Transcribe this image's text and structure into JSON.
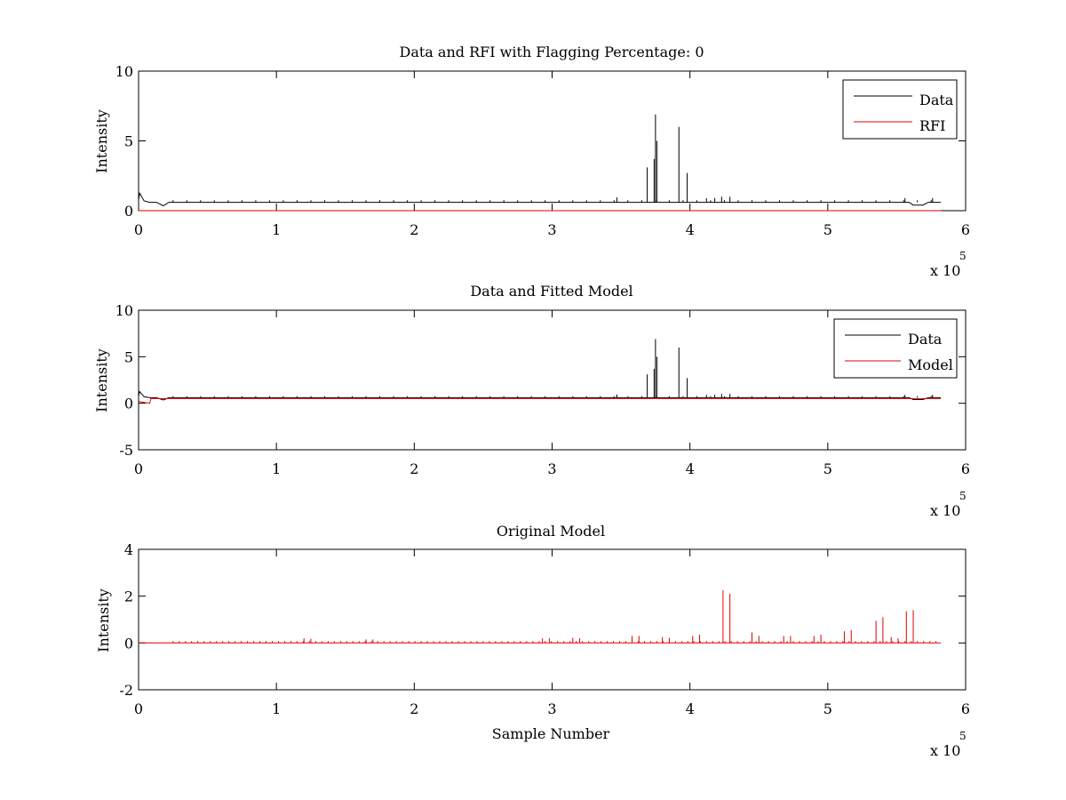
{
  "colors": {
    "data": "#000000",
    "model": "#e00000",
    "axes": "#000000",
    "background": "#ffffff"
  },
  "chart_data": [
    {
      "type": "line",
      "title": "Data and RFI with Flagging Percentage: 0",
      "xlabel": "",
      "ylabel": "Intensity",
      "xlim": [
        0,
        600000
      ],
      "ylim": [
        0,
        10
      ],
      "xticks": [
        "0",
        "1",
        "2",
        "3",
        "4",
        "5",
        "6"
      ],
      "yticks": [
        "0",
        "5",
        "10"
      ],
      "x_multiplier": {
        "base": "x 10",
        "exponent": "5"
      },
      "legend": {
        "position": "top-right",
        "entries": [
          "Data",
          "RFI"
        ]
      },
      "series": [
        {
          "name": "Data",
          "color": "#000000",
          "baseline": 0.6,
          "x_end": 582000,
          "start_transient": {
            "peak": 1.25,
            "x": 800
          },
          "dip": {
            "x": 18000,
            "value": 0.35
          },
          "dip2": {
            "x": 565000,
            "value": 0.4
          },
          "small_spike_spacing": 10000,
          "small_spike_height": 0.75,
          "spikes": [
            {
              "x": 369000,
              "y": 3.1
            },
            {
              "x": 374000,
              "y": 3.7
            },
            {
              "x": 375000,
              "y": 6.9
            },
            {
              "x": 376000,
              "y": 5.0
            },
            {
              "x": 392000,
              "y": 6.0
            },
            {
              "x": 398000,
              "y": 2.7
            },
            {
              "x": 347000,
              "y": 0.95
            },
            {
              "x": 412000,
              "y": 0.9
            },
            {
              "x": 418000,
              "y": 0.9
            },
            {
              "x": 423000,
              "y": 1.0
            },
            {
              "x": 429000,
              "y": 1.0
            },
            {
              "x": 556000,
              "y": 0.9
            },
            {
              "x": 576000,
              "y": 0.9
            }
          ]
        },
        {
          "name": "RFI",
          "color": "#e00000",
          "constant": 0
        }
      ]
    },
    {
      "type": "line",
      "title": "Data and Fitted Model",
      "xlabel": "",
      "ylabel": "Intensity",
      "xlim": [
        0,
        600000
      ],
      "ylim": [
        -5,
        10
      ],
      "xticks": [
        "0",
        "1",
        "2",
        "3",
        "4",
        "5",
        "6"
      ],
      "yticks": [
        "-5",
        "0",
        "5",
        "10"
      ],
      "x_multiplier": {
        "base": "x 10",
        "exponent": "5"
      },
      "legend": {
        "position": "top-right",
        "entries": [
          "Data",
          "Model"
        ]
      },
      "series": [
        {
          "name": "Data",
          "color": "#000000",
          "baseline": 0.6,
          "x_end": 582000,
          "start_transient": {
            "peak": 1.25,
            "x": 800
          },
          "dip": {
            "x": 18000,
            "value": 0.35
          },
          "dip2": {
            "x": 565000,
            "value": 0.4
          },
          "small_spike_spacing": 10000,
          "small_spike_height": 0.75,
          "spikes": [
            {
              "x": 369000,
              "y": 3.1
            },
            {
              "x": 374000,
              "y": 3.7
            },
            {
              "x": 375000,
              "y": 6.9
            },
            {
              "x": 376000,
              "y": 5.0
            },
            {
              "x": 392000,
              "y": 6.0
            },
            {
              "x": 398000,
              "y": 2.7
            },
            {
              "x": 347000,
              "y": 0.95
            },
            {
              "x": 412000,
              "y": 0.9
            },
            {
              "x": 418000,
              "y": 0.9
            },
            {
              "x": 423000,
              "y": 1.0
            },
            {
              "x": 429000,
              "y": 1.0
            },
            {
              "x": 556000,
              "y": 0.9
            },
            {
              "x": 576000,
              "y": 0.9
            }
          ]
        },
        {
          "name": "Model",
          "color": "#e00000",
          "points": [
            [
              0,
              0.2
            ],
            [
              8000,
              0.0
            ],
            [
              9000,
              0.5
            ],
            [
              300000,
              0.5
            ],
            [
              582000,
              0.5
            ]
          ]
        }
      ]
    },
    {
      "type": "line",
      "title": "Original Model",
      "xlabel": "Sample Number",
      "ylabel": "Intensity",
      "xlim": [
        0,
        600000
      ],
      "ylim": [
        -2,
        4
      ],
      "xticks": [
        "0",
        "1",
        "2",
        "3",
        "4",
        "5",
        "6"
      ],
      "yticks": [
        "-2",
        "0",
        "2",
        "4"
      ],
      "x_multiplier": {
        "base": "x 10",
        "exponent": "5"
      },
      "series": [
        {
          "color": "#e00000",
          "baseline": 0,
          "x_end": 582000,
          "small_spike_spacing": 4500,
          "small_spike_height": 0.08,
          "spikes": [
            {
              "x": 120000,
              "y": 0.2
            },
            {
              "x": 125000,
              "y": 0.18
            },
            {
              "x": 165000,
              "y": 0.15
            },
            {
              "x": 170000,
              "y": 0.15
            },
            {
              "x": 293000,
              "y": 0.2
            },
            {
              "x": 298000,
              "y": 0.2
            },
            {
              "x": 315000,
              "y": 0.22
            },
            {
              "x": 320000,
              "y": 0.2
            },
            {
              "x": 358000,
              "y": 0.3
            },
            {
              "x": 363000,
              "y": 0.3
            },
            {
              "x": 380000,
              "y": 0.25
            },
            {
              "x": 385000,
              "y": 0.22
            },
            {
              "x": 402000,
              "y": 0.3
            },
            {
              "x": 407000,
              "y": 0.35
            },
            {
              "x": 424000,
              "y": 2.25
            },
            {
              "x": 429000,
              "y": 2.1
            },
            {
              "x": 445000,
              "y": 0.45
            },
            {
              "x": 450000,
              "y": 0.3
            },
            {
              "x": 468000,
              "y": 0.3
            },
            {
              "x": 473000,
              "y": 0.3
            },
            {
              "x": 490000,
              "y": 0.3
            },
            {
              "x": 495000,
              "y": 0.35
            },
            {
              "x": 512000,
              "y": 0.5
            },
            {
              "x": 517000,
              "y": 0.55
            },
            {
              "x": 535000,
              "y": 0.95
            },
            {
              "x": 540000,
              "y": 1.1
            },
            {
              "x": 546000,
              "y": 0.25
            },
            {
              "x": 551000,
              "y": 0.2
            },
            {
              "x": 557000,
              "y": 1.35
            },
            {
              "x": 562000,
              "y": 1.4
            }
          ]
        }
      ]
    }
  ]
}
